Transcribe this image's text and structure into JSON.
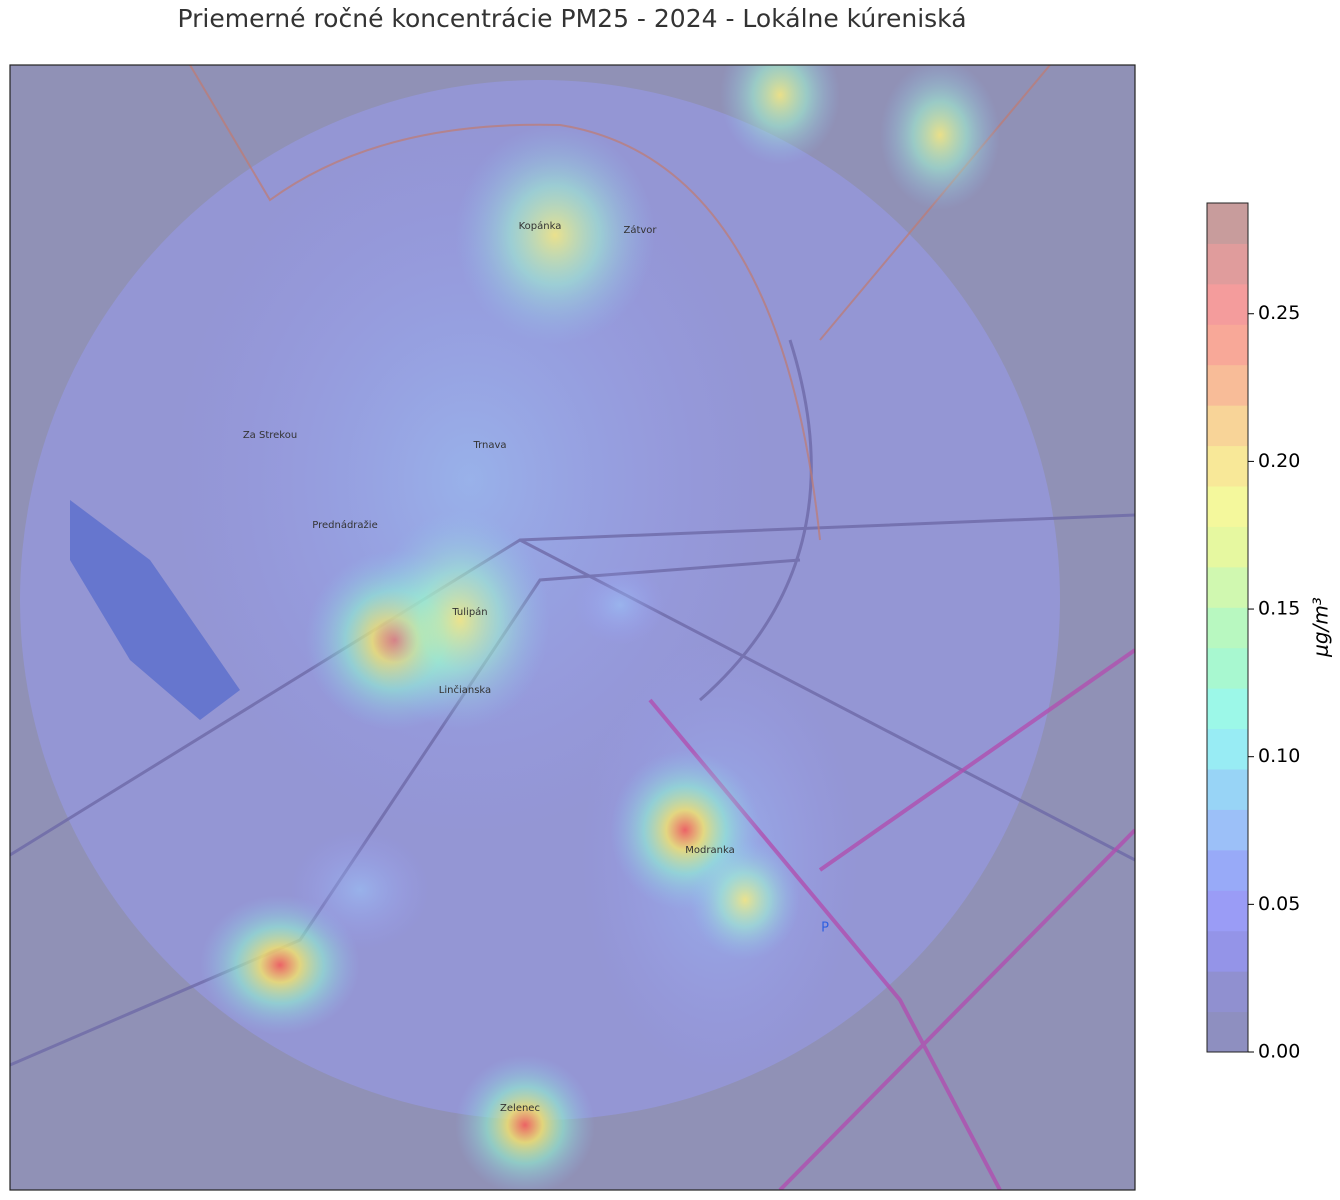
{
  "title": "Priemerné ročné koncentrácie PM25 - 2024 - Lokálne kúreniská",
  "map_labels": [
    "Kopánka",
    "Zátvor",
    "Trnava",
    "Za Strekou",
    "Prednádražie",
    "Tulipán",
    "Linčianska",
    "Modranka",
    "Zelenec"
  ],
  "colorbar": {
    "label": "μg/m³",
    "lim": [
      0,
      0.2875
    ],
    "ticks": [
      {
        "value": 0,
        "label": "0.00"
      },
      {
        "value": 0.05,
        "label": "0.05"
      },
      {
        "value": 0.1,
        "label": "0.10"
      },
      {
        "value": 0.15,
        "label": "0.15"
      },
      {
        "value": 0.2,
        "label": "0.20"
      },
      {
        "value": 0.25,
        "label": "0.25"
      }
    ],
    "colors": [
      "#8e8fc0",
      "#9090d0",
      "#9494e8",
      "#9a9cf6",
      "#98aaf8",
      "#9cc0f8",
      "#98d4f6",
      "#98ecf4",
      "#9cf8e8",
      "#a8f8d0",
      "#b8f8c0",
      "#d0f8b0",
      "#e6f8a0",
      "#f4f89c",
      "#f8e898",
      "#f8d498",
      "#f8bc98",
      "#f8a898",
      "#f49c9c",
      "#e09c9c",
      "#c89c9c"
    ]
  }
}
